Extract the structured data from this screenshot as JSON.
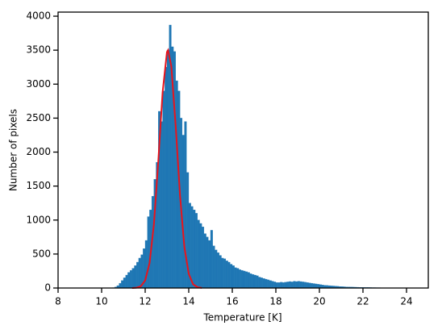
{
  "chart_data": {
    "type": "histogram",
    "xlabel": "Temperature [K]",
    "ylabel": "Number of pixels",
    "color": "#1f77b4",
    "bins": [
      10.5,
      10.6,
      10.7,
      10.8,
      10.9,
      11.0,
      11.1,
      11.2,
      11.3,
      11.4,
      11.5,
      11.6,
      11.7,
      11.8,
      11.9,
      12.0,
      12.1,
      12.2,
      12.3,
      12.4,
      12.5,
      12.6,
      12.7,
      12.8,
      12.9,
      13.0,
      13.1,
      13.2,
      13.3,
      13.4,
      13.5,
      13.6,
      13.7,
      13.8,
      13.9,
      14.0,
      14.1,
      14.2,
      14.3,
      14.4,
      14.5,
      14.6,
      14.7,
      14.8,
      14.9,
      15.0,
      15.1,
      15.2,
      15.3,
      15.4,
      15.5,
      15.6,
      15.7,
      15.8,
      15.9,
      16.0,
      16.1,
      16.2,
      16.3,
      16.4,
      16.5,
      16.6,
      16.7,
      16.8,
      16.9,
      17.0,
      17.1,
      17.2,
      17.3,
      17.4,
      17.5,
      17.6,
      17.7,
      17.8,
      17.9,
      18.0,
      18.1,
      18.2,
      18.3,
      18.4,
      18.5,
      18.6,
      18.7,
      18.8,
      18.9,
      19.0,
      19.1,
      19.2,
      19.3,
      19.4,
      19.5,
      19.6,
      19.7,
      19.8,
      19.9,
      20.0,
      20.1,
      20.2,
      20.3,
      20.4,
      20.5,
      20.6,
      20.7,
      20.8,
      20.9,
      21.0,
      21.1,
      21.2,
      21.3,
      21.4,
      21.5,
      21.6,
      21.7,
      21.8,
      21.9,
      22.0,
      22.1,
      22.2,
      22.3,
      22.4,
      22.5,
      22.6,
      22.7,
      22.8,
      22.9,
      23.0,
      23.1,
      23.2,
      23.3,
      23.4,
      23.5,
      23.6,
      23.7,
      23.8,
      23.9,
      24.0
    ],
    "counts": [
      5,
      15,
      35,
      70,
      110,
      150,
      190,
      230,
      260,
      290,
      330,
      380,
      440,
      490,
      580,
      700,
      1050,
      1150,
      1350,
      1600,
      1850,
      2600,
      2450,
      2900,
      3250,
      3500,
      3870,
      3550,
      3480,
      3050,
      2900,
      2500,
      2250,
      2450,
      1700,
      1250,
      1200,
      1150,
      1100,
      1000,
      950,
      900,
      800,
      750,
      700,
      850,
      620,
      560,
      520,
      480,
      440,
      430,
      400,
      380,
      350,
      330,
      300,
      290,
      270,
      260,
      250,
      240,
      230,
      210,
      200,
      190,
      180,
      160,
      150,
      140,
      130,
      120,
      110,
      100,
      90,
      80,
      80,
      85,
      80,
      85,
      90,
      95,
      90,
      100,
      95,
      100,
      95,
      90,
      85,
      80,
      75,
      70,
      65,
      60,
      55,
      50,
      45,
      40,
      38,
      35,
      32,
      30,
      28,
      25,
      22,
      20,
      18,
      16,
      15,
      14,
      13,
      12,
      11,
      10,
      10,
      9,
      8,
      8,
      7,
      6,
      6,
      5,
      5,
      4,
      4,
      3,
      3,
      3,
      2,
      2,
      2,
      2,
      1,
      1,
      1
    ],
    "fit": {
      "color": "#e8141c",
      "x": [
        11.4,
        11.6,
        11.8,
        12.0,
        12.2,
        12.4,
        12.6,
        12.8,
        13.0,
        13.05,
        13.2,
        13.4,
        13.6,
        13.8,
        14.0,
        14.2,
        14.4,
        14.6
      ],
      "values": [
        0.7,
        4.9,
        26.5,
        111.7,
        366,
        935,
        1859,
        2879,
        3473,
        3500,
        3262,
        2387,
        1360,
        603,
        209,
        56,
        11.8,
        1.9
      ]
    },
    "xlim": [
      8,
      25
    ],
    "ylim": [
      0,
      4060
    ],
    "xticks": [
      8,
      10,
      12,
      14,
      16,
      18,
      20,
      22,
      24
    ],
    "yticks": [
      0,
      500,
      1000,
      1500,
      2000,
      2500,
      3000,
      3500,
      4000
    ]
  }
}
